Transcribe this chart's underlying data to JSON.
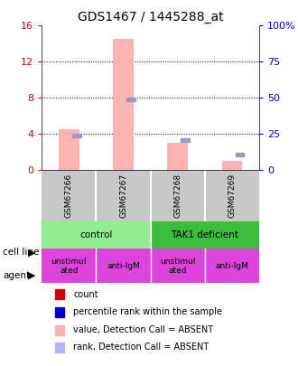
{
  "title": "GDS1467 / 1445288_at",
  "samples": [
    "GSM67266",
    "GSM67267",
    "GSM67268",
    "GSM67269"
  ],
  "pink_bar_values": [
    4.5,
    14.5,
    3.0,
    1.0
  ],
  "blue_square_values": [
    25,
    50,
    22,
    12
  ],
  "ylim_left": [
    0,
    16
  ],
  "ylim_right": [
    0,
    100
  ],
  "yticks_left": [
    0,
    4,
    8,
    12,
    16
  ],
  "yticks_right": [
    0,
    25,
    50,
    75,
    100
  ],
  "ytick_labels_left": [
    "0",
    "4",
    "8",
    "12",
    "16"
  ],
  "ytick_labels_right": [
    "0",
    "25",
    "50",
    "75",
    "100%"
  ],
  "cell_line_labels": [
    "control",
    "TAK1 deficient"
  ],
  "cell_line_spans": [
    [
      0,
      2
    ],
    [
      2,
      4
    ]
  ],
  "cell_line_colors": [
    "#90ee90",
    "#3dbb3d"
  ],
  "agent_labels": [
    "unstimul\nated",
    "anti-IgM",
    "unstimul\nated",
    "anti-IgM"
  ],
  "sample_bg_color": "#c8c8c8",
  "legend_items": [
    {
      "color": "#cc0000",
      "label": "count"
    },
    {
      "color": "#0000cc",
      "label": "percentile rank within the sample"
    },
    {
      "color": "#ffb3b3",
      "label": "value, Detection Call = ABSENT"
    },
    {
      "color": "#b3b3ff",
      "label": "rank, Detection Call = ABSENT"
    }
  ],
  "left_axis_color": "#cc0000",
  "right_axis_color": "#0000cc",
  "pink_bar_color": "#ffb3b3",
  "blue_square_color": "#9999cc",
  "dotted_grid_at": [
    4,
    8,
    12
  ],
  "agent_color": "#dd44dd"
}
